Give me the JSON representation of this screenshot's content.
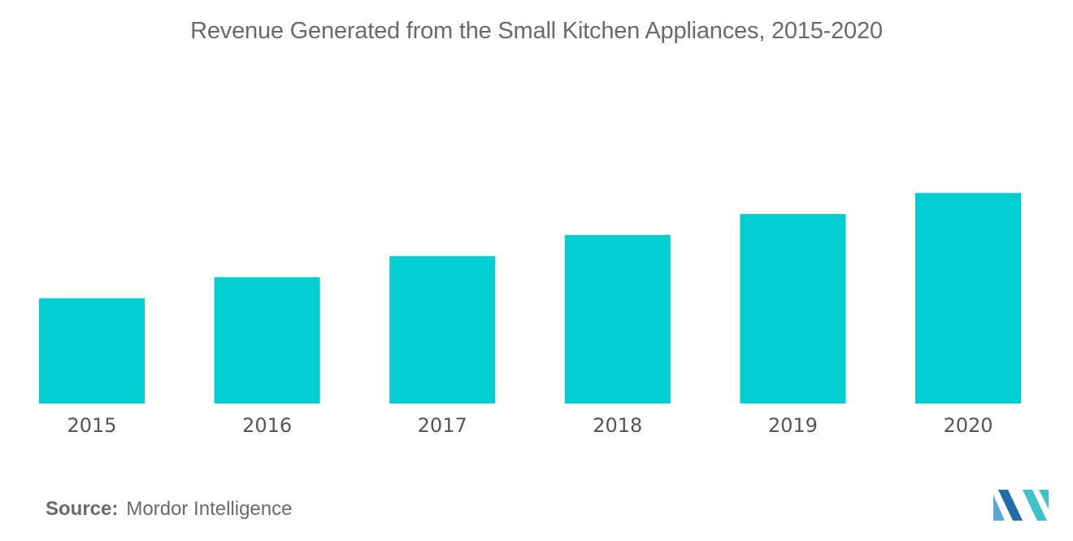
{
  "chart_data": {
    "type": "bar",
    "title": "Revenue Generated from the Small Kitchen Appliances, 2015-2020",
    "categories": [
      "2015",
      "2016",
      "2017",
      "2018",
      "2019",
      "2020"
    ],
    "values": [
      50,
      60,
      70,
      80,
      90,
      100
    ],
    "xlabel": "",
    "ylabel": "",
    "ylim": [
      0,
      170
    ],
    "grid": false,
    "bar_color": "#00ced1"
  },
  "source": {
    "label": "Source:",
    "text": "Mordor Intelligence"
  },
  "logo": {
    "icon": "mordor-intelligence-logo",
    "colors": [
      "#5ba8d6",
      "#1e6fa8",
      "#3fc2c8"
    ]
  }
}
